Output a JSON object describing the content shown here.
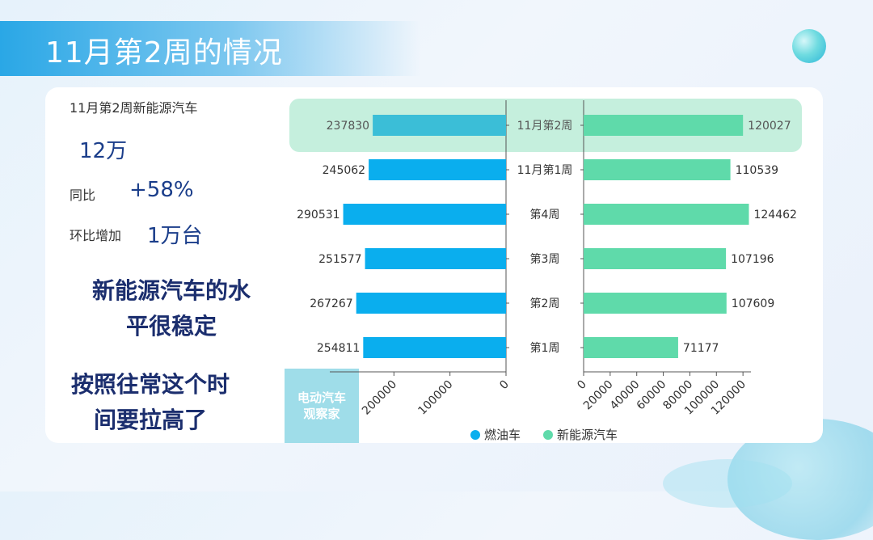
{
  "slide": {
    "title": "11月第2周的情况"
  },
  "summary": {
    "subtitle": "11月第2周新能源汽车",
    "total": "12万",
    "yoy_label": "同比",
    "yoy_value": "+58%",
    "mom_label": "环比增加",
    "mom_value": "1万台",
    "note1_line1": "新能源汽车的水",
    "note1_line2": "平很稳定",
    "note2_line1": "按照往常这个时",
    "note2_line2": "间要拉高了"
  },
  "watermark": {
    "line1": "电动汽车",
    "line2": "观察家"
  },
  "colors": {
    "fuel": "#0aaeee",
    "nev": "#5fdaaa",
    "highlight": "#c5efdd",
    "highlight_fuel": "#3bbed7"
  },
  "chart_data": {
    "type": "bar",
    "orientation": "horizontal-butterfly",
    "categories": [
      "11月第2周",
      "11月第1周",
      "第4周",
      "第3周",
      "第2周",
      "第1周"
    ],
    "series": [
      {
        "name": "燃油车",
        "values": [
          237830,
          245062,
          290531,
          251577,
          267267,
          254811
        ]
      },
      {
        "name": "新能源汽车",
        "values": [
          120027,
          110539,
          124462,
          107196,
          107609,
          71177
        ]
      }
    ],
    "left_ticks": [
      "200000",
      "100000",
      "0"
    ],
    "right_ticks": [
      "0",
      "20000",
      "40000",
      "60000",
      "80000",
      "100000",
      "120000"
    ],
    "left_max": 300000,
    "right_max": 126000,
    "highlight_category": "11月第2周",
    "legend_position": "bottom"
  }
}
